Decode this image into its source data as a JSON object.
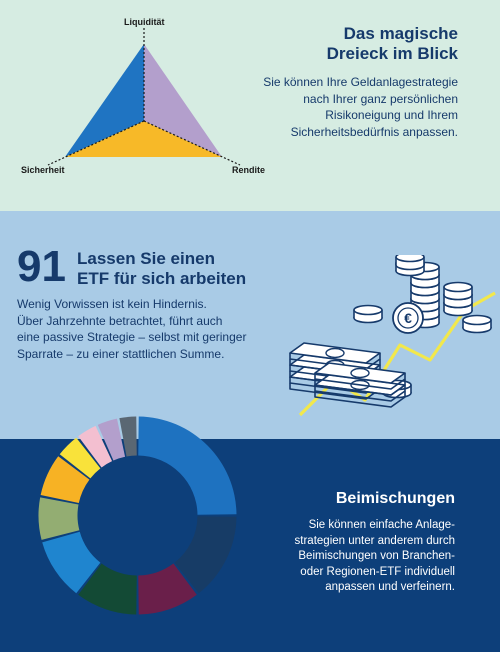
{
  "section1": {
    "triangle_labels": {
      "top": "Liquidität",
      "left": "Sicherheit",
      "right": "Rendite"
    },
    "title_line1": "Das magische",
    "title_line2": "Dreieck im Blick",
    "body": [
      "Sie können Ihre Geldanlagestrategie",
      "nach Ihrer ganz persönlichen",
      "Risikoneigung und Ihrem",
      "Sicherheitsbedürfnis anpassen."
    ],
    "colors": {
      "background": "#d6ece2",
      "left_face": "#1f74c2",
      "right_face": "#b39fcc",
      "bottom_face": "#f7b928"
    }
  },
  "section2": {
    "number": "91",
    "title_line1": "Lassen Sie einen",
    "title_line2": "ETF für sich arbeiten",
    "body": [
      "Wenig Vorwissen ist kein Hindernis.",
      "Über Jahrzehnte betrachtet, führt auch",
      "eine passive Strategie – selbst mit geringer",
      "Sparrate – zu einer stattlichen Summe."
    ],
    "icon": "money-coins-growth-icon",
    "coin_symbol": "€",
    "colors": {
      "background": "#a9cbe6",
      "line": "#f2e84b"
    }
  },
  "section3": {
    "title": "Beimischungen",
    "body": [
      "Sie können einfache Anlage-",
      "strategien unter anderem durch",
      "Beimischungen von Branchen-",
      "oder Regionen-ETF individuell",
      "anpassen und verfeinern."
    ],
    "donut_segments": [
      {
        "value": 24,
        "color": "#1e72c0"
      },
      {
        "value": 14,
        "color": "#173c66"
      },
      {
        "value": 10,
        "color": "#6a1f4a"
      },
      {
        "value": 10,
        "color": "#134a35"
      },
      {
        "value": 10,
        "color": "#1f85cf"
      },
      {
        "value": 7,
        "color": "#93ad72"
      },
      {
        "value": 7,
        "color": "#f7b224"
      },
      {
        "value": 4,
        "color": "#f9e23a"
      },
      {
        "value": 3.5,
        "color": "#f3bfd0"
      },
      {
        "value": 3.5,
        "color": "#b39fcc"
      },
      {
        "value": 3,
        "color": "#5a6773"
      }
    ],
    "colors": {
      "background": "#0d3f7a"
    }
  }
}
